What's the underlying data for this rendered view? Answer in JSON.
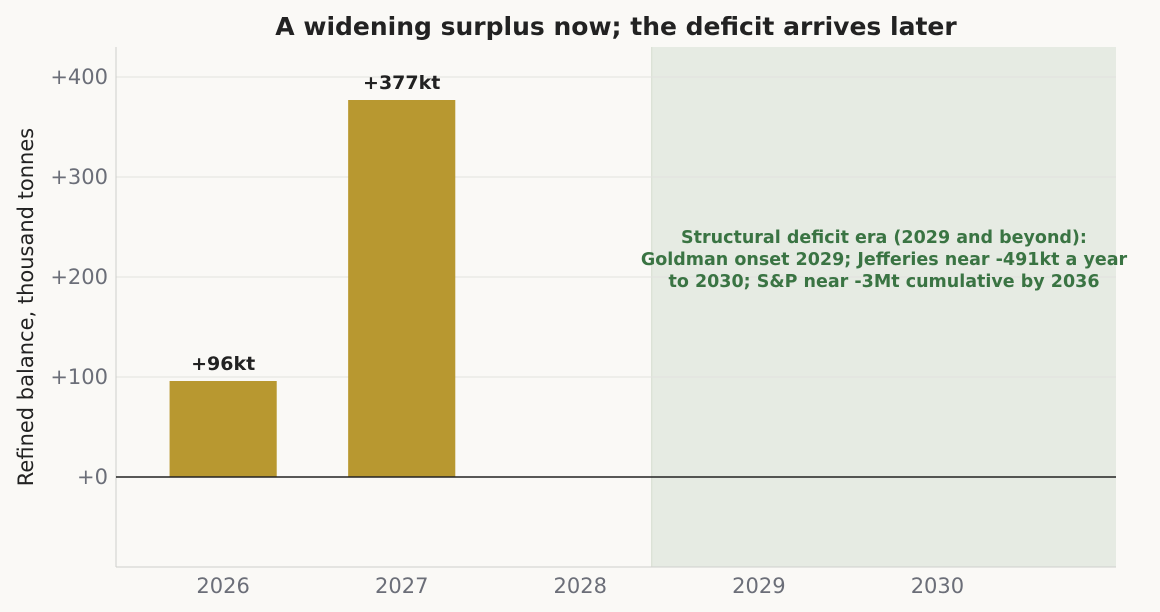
{
  "chart_data": {
    "type": "bar",
    "title": "A widening surplus now; the deficit arrives later",
    "xlabel": "",
    "ylabel": "Refined balance, thousand tonnes",
    "categories": [
      "2026",
      "2027",
      "2028",
      "2029",
      "2030"
    ],
    "series": [
      {
        "values": [
          96,
          377,
          null,
          null,
          null
        ],
        "data_labels": [
          "+96kt",
          "+377kt",
          "",
          "",
          ""
        ]
      }
    ],
    "ylim": [
      -90,
      430
    ],
    "yticks": [
      0,
      100,
      200,
      300,
      400
    ],
    "ytick_labels": [
      "+0",
      "+100",
      "+200",
      "+300",
      "+400"
    ],
    "grid": true,
    "shaded_region": {
      "from_category": "2029",
      "to_category": "2030",
      "note_lines": [
        "Structural deficit era (2029 and beyond):",
        "Goldman onset 2029; Jefferies near -491kt a year",
        "to 2030; S&P near -3Mt cumulative by 2036"
      ]
    },
    "colors": {
      "bar": "#b89830",
      "shade": "#e6ebe3",
      "note": "#3a7443",
      "zero_line": "#222222",
      "grid": "#e2e2df",
      "background": "#faf9f6"
    }
  }
}
